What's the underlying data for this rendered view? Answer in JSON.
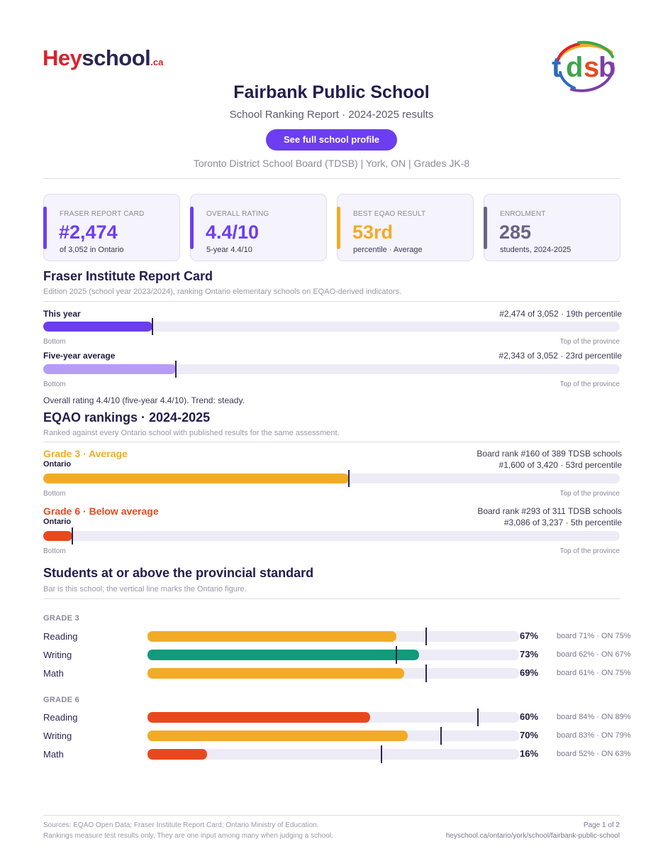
{
  "branding": {
    "hey_part1": "Hey",
    "hey_part2": "school",
    "hey_part3": ".ca",
    "tdsb_t": "t",
    "tdsb_d": "d",
    "tdsb_s": "s",
    "tdsb_b": "b"
  },
  "header": {
    "title": "Fairbank Public School",
    "subtitle": "School Ranking Report  ·  2024-2025 results",
    "profile_button": "See full school profile",
    "meta": "Toronto District School Board (TDSB)  |  York, ON  |  Grades JK-8"
  },
  "cards": [
    {
      "label": "FRASER REPORT CARD",
      "value": "#2,474",
      "sub": "of 3,052 in Ontario",
      "color": "#6c3ef0"
    },
    {
      "label": "OVERALL RATING",
      "value": "4.4/10",
      "sub": "5-year 4.4/10",
      "color": "#6c3ef0"
    },
    {
      "label": "BEST EQAO RESULT",
      "value": "53rd",
      "sub": "percentile  ·  Average",
      "color": "#f2ab27"
    },
    {
      "label": "ENROLMENT",
      "value": "285",
      "sub": "students, 2024-2025",
      "color": "#6b6285"
    }
  ],
  "fraser": {
    "heading": "Fraser Institute Report Card",
    "note": "Edition 2025 (school year 2023/2024), ranking Ontario elementary schools on EQAO-derived indicators.",
    "rows": [
      {
        "label": "This year",
        "right": "#2,474 of 3,052  ·  19th percentile",
        "value": 0.19,
        "color": "#6c3ef0"
      },
      {
        "label": "Five-year average",
        "right": "#2,343 of 3,052  ·  23rd percentile",
        "value": 0.23,
        "color": "#b69cf7"
      }
    ],
    "bottom_label": "Bottom",
    "top_label": "Top of the province",
    "overall": "Overall rating 4.4/10 (five-year 4.4/10). Trend: steady."
  },
  "eqao": {
    "heading": "EQAO rankings  ·  2024-2025",
    "note": "Ranked against every Ontario school with published results for the same assessment.",
    "grades": [
      {
        "title": "Grade 3  ·  Average",
        "scope": "Ontario",
        "board_rank": "Board rank #160 of 389 TDSB schools",
        "ontario_rank": "#1,600 of 3,420  ·  53rd percentile",
        "value": 0.53,
        "color": "#f2ab27"
      },
      {
        "title": "Grade 6  ·  Below average",
        "scope": "Ontario",
        "board_rank": "Board rank #293 of 311 TDSB schools",
        "ontario_rank": "#3,086 of 3,237  ·  5th percentile",
        "value": 0.05,
        "color": "#e8491c"
      }
    ],
    "bottom_label": "Bottom",
    "top_label": "Top of the province"
  },
  "standards": {
    "heading": "Students at or above the provincial standard",
    "note": "Bar is this school; the vertical line marks the Ontario figure.",
    "groups": [
      {
        "grade": "GRADE 3",
        "rows": [
          {
            "subject": "Reading",
            "pct": "67%",
            "value": 67,
            "ontario": 75,
            "cmp": "board 71%  ·  ON 75%",
            "color": "#f2ab27"
          },
          {
            "subject": "Writing",
            "pct": "73%",
            "value": 73,
            "ontario": 67,
            "cmp": "board 62%  ·  ON 67%",
            "color": "#13997b"
          },
          {
            "subject": "Math",
            "pct": "69%",
            "value": 69,
            "ontario": 75,
            "cmp": "board 61%  ·  ON 75%",
            "color": "#f2ab27"
          }
        ]
      },
      {
        "grade": "GRADE 6",
        "rows": [
          {
            "subject": "Reading",
            "pct": "60%",
            "value": 60,
            "ontario": 89,
            "cmp": "board 84%  ·  ON 89%",
            "color": "#e8491c"
          },
          {
            "subject": "Writing",
            "pct": "70%",
            "value": 70,
            "ontario": 79,
            "cmp": "board 83%  ·  ON 79%",
            "color": "#f2ab27"
          },
          {
            "subject": "Math",
            "pct": "16%",
            "value": 16,
            "ontario": 63,
            "cmp": "board 52%  ·  ON 63%",
            "color": "#e8491c"
          }
        ]
      }
    ]
  },
  "footer": {
    "sources": "Sources: EQAO Open Data; Fraser Institute Report Card; Ontario Ministry of Education.",
    "disclaimer": "Rankings measure test results only. They are one input among many when judging a school.",
    "page": "Page 1 of 2",
    "url": "heyschool.ca/ontario/york/school/fairbank-public-school"
  }
}
